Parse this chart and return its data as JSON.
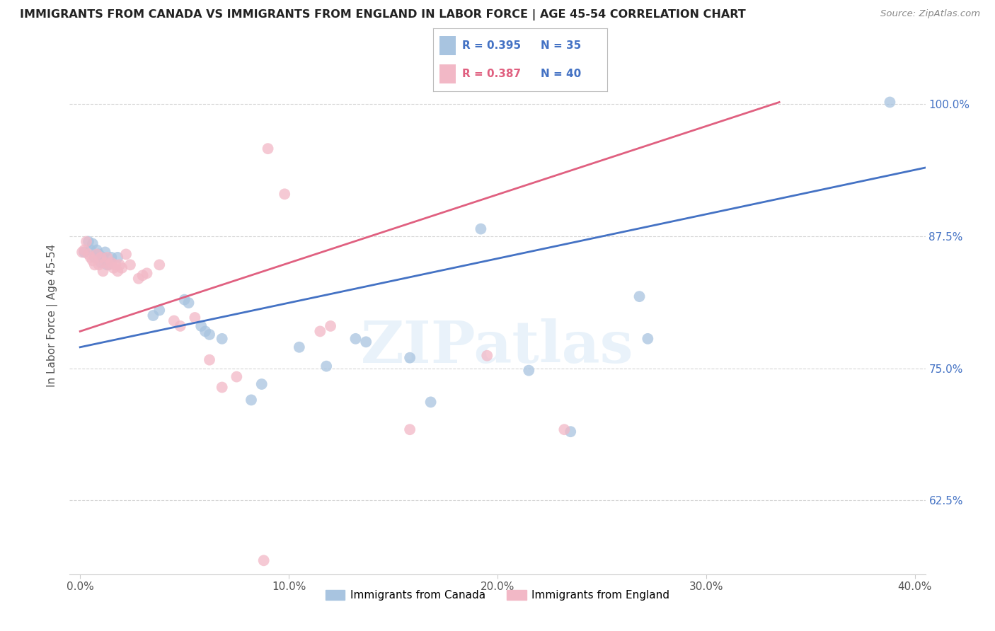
{
  "title": "IMMIGRANTS FROM CANADA VS IMMIGRANTS FROM ENGLAND IN LABOR FORCE | AGE 45-54 CORRELATION CHART",
  "source": "Source: ZipAtlas.com",
  "xlabel_ticks": [
    "0.0%",
    "10.0%",
    "20.0%",
    "30.0%",
    "40.0%"
  ],
  "xlabel_tick_vals": [
    0.0,
    0.1,
    0.2,
    0.3,
    0.4
  ],
  "ylabel_ticks": [
    "62.5%",
    "75.0%",
    "87.5%",
    "100.0%"
  ],
  "ylabel_tick_vals": [
    0.625,
    0.75,
    0.875,
    1.0
  ],
  "xlim": [
    -0.005,
    0.405
  ],
  "ylim": [
    0.555,
    1.045
  ],
  "ylabel": "In Labor Force | Age 45-54",
  "legend_entries": [
    "Immigrants from Canada",
    "Immigrants from England"
  ],
  "blue_R": "R = 0.395",
  "blue_N": "N = 35",
  "pink_R": "R = 0.387",
  "pink_N": "N = 40",
  "blue_color": "#a8c4e0",
  "pink_color": "#f2b8c6",
  "blue_line_color": "#4472c4",
  "pink_line_color": "#e06080",
  "watermark_text": "ZIPatlas",
  "blue_points": [
    [
      0.002,
      0.86
    ],
    [
      0.004,
      0.87
    ],
    [
      0.005,
      0.862
    ],
    [
      0.006,
      0.868
    ],
    [
      0.007,
      0.855
    ],
    [
      0.008,
      0.862
    ],
    [
      0.009,
      0.858
    ],
    [
      0.01,
      0.85
    ],
    [
      0.011,
      0.855
    ],
    [
      0.012,
      0.86
    ],
    [
      0.013,
      0.848
    ],
    [
      0.015,
      0.855
    ],
    [
      0.018,
      0.855
    ],
    [
      0.035,
      0.8
    ],
    [
      0.038,
      0.805
    ],
    [
      0.05,
      0.815
    ],
    [
      0.052,
      0.812
    ],
    [
      0.058,
      0.79
    ],
    [
      0.06,
      0.785
    ],
    [
      0.062,
      0.782
    ],
    [
      0.068,
      0.778
    ],
    [
      0.082,
      0.72
    ],
    [
      0.087,
      0.735
    ],
    [
      0.105,
      0.77
    ],
    [
      0.118,
      0.752
    ],
    [
      0.132,
      0.778
    ],
    [
      0.137,
      0.775
    ],
    [
      0.158,
      0.76
    ],
    [
      0.168,
      0.718
    ],
    [
      0.192,
      0.882
    ],
    [
      0.215,
      0.748
    ],
    [
      0.235,
      0.69
    ],
    [
      0.268,
      0.818
    ],
    [
      0.272,
      0.778
    ],
    [
      0.388,
      1.002
    ]
  ],
  "pink_points": [
    [
      0.001,
      0.86
    ],
    [
      0.002,
      0.862
    ],
    [
      0.003,
      0.87
    ],
    [
      0.004,
      0.858
    ],
    [
      0.005,
      0.855
    ],
    [
      0.006,
      0.852
    ],
    [
      0.007,
      0.848
    ],
    [
      0.008,
      0.858
    ],
    [
      0.009,
      0.848
    ],
    [
      0.01,
      0.855
    ],
    [
      0.011,
      0.842
    ],
    [
      0.012,
      0.85
    ],
    [
      0.013,
      0.855
    ],
    [
      0.014,
      0.848
    ],
    [
      0.015,
      0.85
    ],
    [
      0.016,
      0.845
    ],
    [
      0.017,
      0.848
    ],
    [
      0.018,
      0.842
    ],
    [
      0.019,
      0.848
    ],
    [
      0.02,
      0.845
    ],
    [
      0.022,
      0.858
    ],
    [
      0.024,
      0.848
    ],
    [
      0.028,
      0.835
    ],
    [
      0.03,
      0.838
    ],
    [
      0.032,
      0.84
    ],
    [
      0.038,
      0.848
    ],
    [
      0.045,
      0.795
    ],
    [
      0.048,
      0.79
    ],
    [
      0.055,
      0.798
    ],
    [
      0.062,
      0.758
    ],
    [
      0.068,
      0.732
    ],
    [
      0.075,
      0.742
    ],
    [
      0.09,
      0.958
    ],
    [
      0.098,
      0.915
    ],
    [
      0.115,
      0.785
    ],
    [
      0.12,
      0.79
    ],
    [
      0.158,
      0.692
    ],
    [
      0.232,
      0.692
    ],
    [
      0.088,
      0.568
    ],
    [
      0.195,
      0.762
    ]
  ],
  "blue_line_params": [
    0.0,
    0.405,
    0.77,
    0.94
  ],
  "pink_line_params": [
    0.0,
    0.335,
    0.785,
    1.002
  ],
  "background_color": "#ffffff",
  "grid_color": "#cccccc"
}
